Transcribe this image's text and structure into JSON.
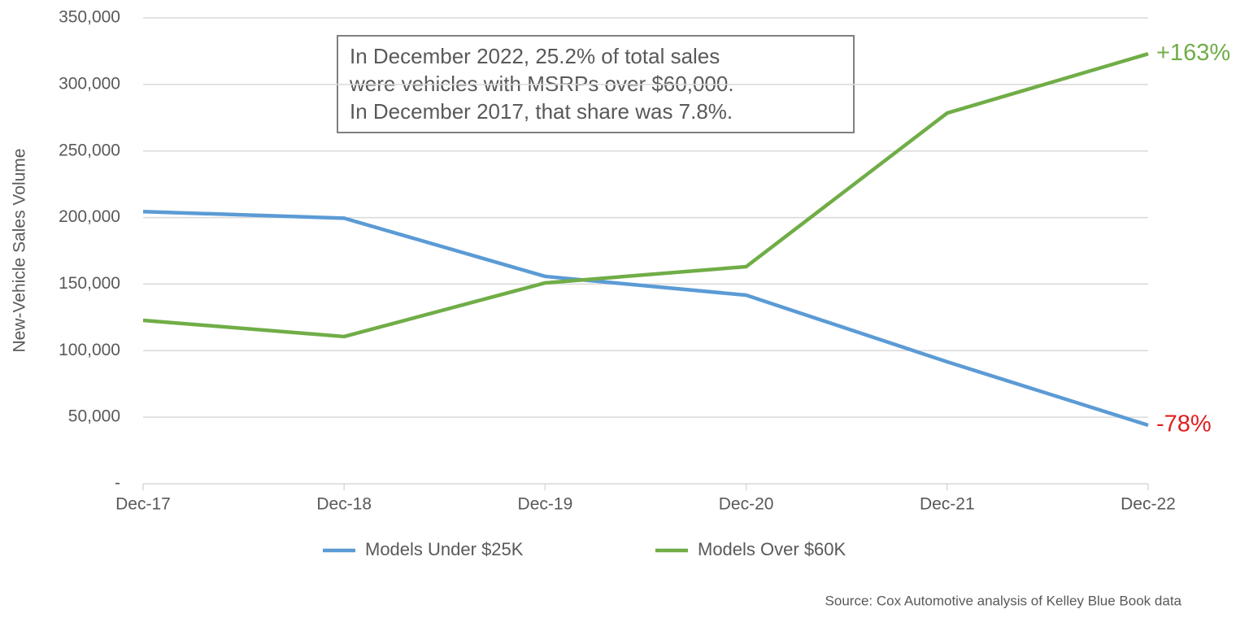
{
  "chart_data": {
    "type": "line",
    "y_label": "New-Vehicle Sales Volume",
    "categories": [
      "Dec-17",
      "Dec-18",
      "Dec-19",
      "Dec-20",
      "Dec-21",
      "Dec-22"
    ],
    "series": [
      {
        "name": "Models Under $25K",
        "color": "#5b9bd5",
        "values": [
          204500,
          199500,
          155800,
          141700,
          91600,
          44000
        ],
        "end_label": "-78%",
        "end_label_color": "#e02020"
      },
      {
        "name": "Models Over $60K",
        "color": "#70ad47",
        "values": [
          122800,
          110600,
          150900,
          163100,
          278500,
          323000
        ],
        "end_label": "+163%",
        "end_label_color": "#70ad47"
      }
    ],
    "ylim": [
      0,
      350000
    ],
    "yticks": [
      {
        "value": 0,
        "label": "-"
      },
      {
        "value": 50000,
        "label": "50,000"
      },
      {
        "value": 100000,
        "label": "100,000"
      },
      {
        "value": 150000,
        "label": "150,000"
      },
      {
        "value": 200000,
        "label": "200,000"
      },
      {
        "value": 250000,
        "label": "250,000"
      },
      {
        "value": 300000,
        "label": "300,000"
      },
      {
        "value": 350000,
        "label": "350,000"
      }
    ],
    "grid": true,
    "legend": "bottom",
    "annotation_box": [
      "In December 2022, 25.2% of total sales",
      "were vehicles with MSRPs over $60,000.",
      "In December 2017, that share was 7.8%."
    ],
    "source": "Source: Cox Automotive analysis of Kelley Blue Book data"
  }
}
